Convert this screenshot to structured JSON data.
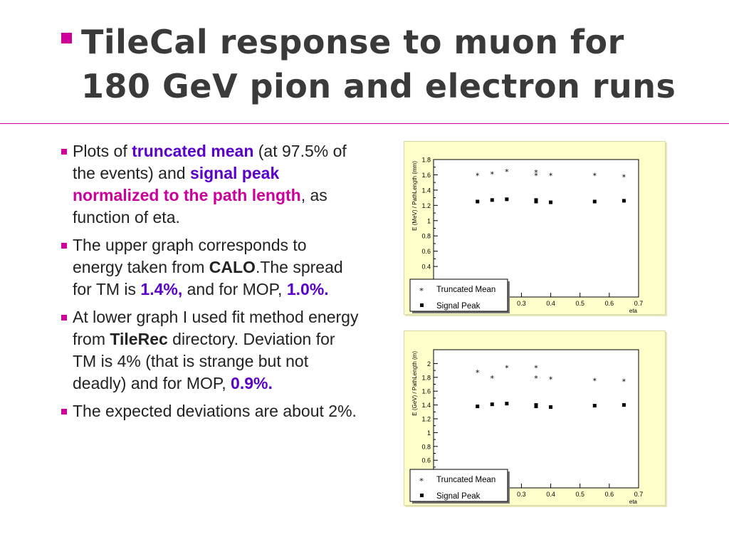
{
  "slide": {
    "title_line1": "TileCal response to muon for",
    "title_line2": "180 GeV pion and electron runs"
  },
  "bullets": {
    "b1": {
      "t1": "Plots of ",
      "t2": "truncated mean",
      "t3": " (at 97.5% of the events) and ",
      "t4": "signal peak",
      "t5": " ",
      "t6": "normalized to the path length",
      "t7": ", as function of eta."
    },
    "b2": {
      "t1": "The upper graph corresponds to energy taken from ",
      "t2": "CALO",
      "t3": ".The spread for TM is ",
      "t4": "1.4%,",
      "t5": " and for MOP, ",
      "t6": "1.0%."
    },
    "b3": {
      "t1": "At lower graph I used fit method energy from ",
      "t2": "TileRec",
      "t3": " directory. Deviation for TM is 4% (that is strange but not deadly) and for MOP, ",
      "t4": "0.9%."
    },
    "b4": {
      "t1": "The expected deviations are about 2%."
    }
  },
  "colors": {
    "accent": "#cc0099",
    "highlight": "#5a00cc",
    "plot_bg": "#ffffcc"
  },
  "chart_data": [
    {
      "type": "scatter",
      "title": "",
      "xlabel": "eta",
      "ylabel": "E (MeV) / PathLength (mm)",
      "xlim": [
        0,
        0.7
      ],
      "ylim": [
        0,
        1.8
      ],
      "x_ticks": [
        "0.3",
        "0.4",
        "0.5",
        "0.6",
        "0.7"
      ],
      "y_ticks": [
        "0.4",
        "0.6",
        "0.8",
        "1",
        "1.2",
        "1.4",
        "1.6",
        "1.8"
      ],
      "legend": "bottom-left",
      "series": [
        {
          "name": "Truncated Mean",
          "marker": "*",
          "x": [
            0.15,
            0.2,
            0.25,
            0.35,
            0.35,
            0.4,
            0.55,
            0.65
          ],
          "y": [
            1.6,
            1.62,
            1.65,
            1.6,
            1.64,
            1.6,
            1.6,
            1.58
          ]
        },
        {
          "name": "Signal Peak",
          "marker": "square",
          "x": [
            0.15,
            0.2,
            0.25,
            0.35,
            0.35,
            0.4,
            0.55,
            0.65
          ],
          "y": [
            1.25,
            1.27,
            1.28,
            1.25,
            1.27,
            1.24,
            1.25,
            1.26
          ]
        }
      ]
    },
    {
      "type": "scatter",
      "title": "",
      "xlabel": "eta",
      "ylabel": "E (GeV) / PathLength (m)",
      "xlim": [
        0,
        0.7
      ],
      "ylim": [
        0.2,
        2.2
      ],
      "x_ticks": [
        "0.3",
        "0.4",
        "0.5",
        "0.6",
        "0.7"
      ],
      "y_ticks": [
        "0.4",
        "0.6",
        "0.8",
        "1",
        "1.2",
        "1.4",
        "1.6",
        "1.8",
        "2"
      ],
      "legend": "bottom-left",
      "series": [
        {
          "name": "Truncated Mean",
          "marker": "*",
          "x": [
            0.15,
            0.2,
            0.25,
            0.35,
            0.35,
            0.4,
            0.55,
            0.65
          ],
          "y": [
            1.88,
            1.8,
            1.95,
            1.8,
            1.95,
            1.78,
            1.76,
            1.75
          ]
        },
        {
          "name": "Signal Peak",
          "marker": "square",
          "x": [
            0.15,
            0.2,
            0.25,
            0.35,
            0.35,
            0.4,
            0.55,
            0.65
          ],
          "y": [
            1.38,
            1.41,
            1.42,
            1.38,
            1.4,
            1.37,
            1.39,
            1.4
          ]
        }
      ]
    }
  ]
}
